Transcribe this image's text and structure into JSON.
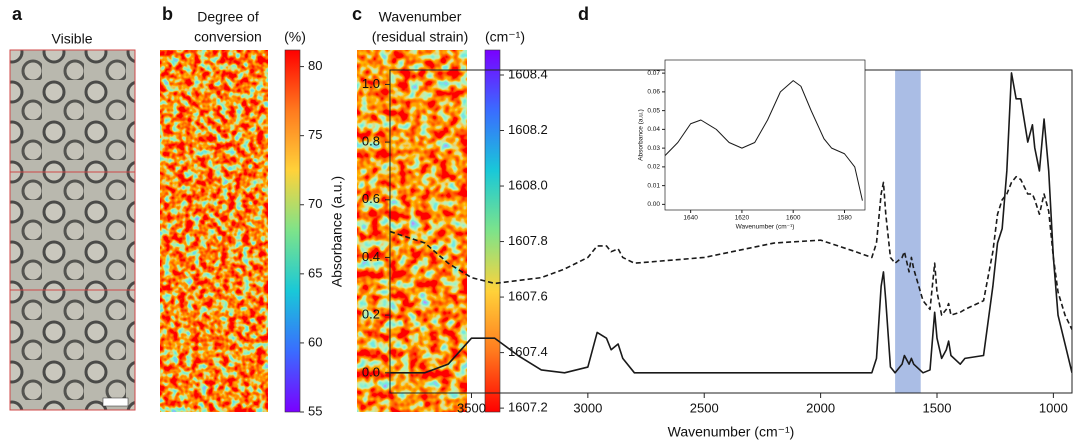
{
  "chart_data": [
    {
      "type": "image",
      "label": "a",
      "title": "Visible"
    },
    {
      "type": "heatmap",
      "label": "b",
      "title": [
        "Degree of",
        "conversion"
      ],
      "unit": "(%)",
      "colors": [
        "#7a00ff",
        "#3a6cff",
        "#19c8d8",
        "#7de38a",
        "#ffd23a",
        "#ff7a1e",
        "#ff0000"
      ],
      "clim": [
        55,
        81.2
      ],
      "ticks": [
        55,
        60,
        65,
        70,
        75,
        80
      ]
    },
    {
      "type": "heatmap",
      "label": "c",
      "title": [
        "Wavenumber",
        "(residual strain)"
      ],
      "unit": "(cm⁻¹)",
      "colors": [
        "#ff0000",
        "#ff7a1e",
        "#ffd23a",
        "#7de38a",
        "#19c8d8",
        "#3a6cff",
        "#7a00ff"
      ],
      "clim": [
        1607.186,
        1608.49
      ],
      "ticks": [
        1607.2,
        1607.4,
        1607.6,
        1607.8,
        {
          "value": 1608.0,
          "label": "1608.0"
        },
        1608.2,
        1608.4
      ]
    },
    {
      "type": "line",
      "label": "d",
      "xlabel": "Wavenumber (cm⁻¹)",
      "ylabel": "Absorbance (a.u.)",
      "xlim": [
        3850,
        920
      ],
      "ylim": [
        -0.07,
        1.05
      ],
      "xticks": [
        3500,
        3000,
        2500,
        2000,
        1500,
        1000
      ],
      "yticks": [
        {
          "value": 0,
          "label": "0.0"
        },
        {
          "value": 0.2,
          "label": "0.2"
        },
        {
          "value": 0.4,
          "label": "0.4"
        },
        {
          "value": 0.6,
          "label": "0.6"
        },
        {
          "value": 0.8,
          "label": "0.8"
        },
        {
          "value": 1.0,
          "label": "1.0"
        }
      ],
      "highlight": {
        "from": 1680,
        "to": 1570,
        "color": "#9bb1e0"
      },
      "x": [
        3850,
        3700,
        3600,
        3500,
        3400,
        3300,
        3200,
        3100,
        3000,
        2960,
        2920,
        2900,
        2870,
        2850,
        2800,
        2500,
        2200,
        2000,
        1850,
        1780,
        1760,
        1740,
        1730,
        1720,
        1700,
        1680,
        1650,
        1640,
        1620,
        1610,
        1600,
        1560,
        1530,
        1510,
        1500,
        1480,
        1460,
        1450,
        1440,
        1400,
        1380,
        1300,
        1260,
        1240,
        1220,
        1200,
        1180,
        1160,
        1140,
        1110,
        1090,
        1080,
        1060,
        1040,
        1020,
        1000,
        980,
        950,
        920
      ],
      "series": [
        {
          "color": "#1a1a1a",
          "dashed": false,
          "values": [
            0.0,
            0.0,
            0.03,
            0.12,
            0.12,
            0.06,
            0.01,
            0.0,
            0.02,
            0.14,
            0.12,
            0.08,
            0.1,
            0.05,
            0.0,
            0.0,
            0.0,
            0.0,
            0.0,
            0.0,
            0.05,
            0.3,
            0.35,
            0.25,
            0.02,
            0.0,
            0.03,
            0.06,
            0.03,
            0.05,
            0.03,
            0.0,
            0.01,
            0.21,
            0.12,
            0.05,
            0.08,
            0.11,
            0.06,
            0.03,
            0.05,
            0.06,
            0.3,
            0.45,
            0.5,
            0.7,
            1.04,
            0.95,
            0.95,
            0.8,
            0.86,
            0.78,
            0.7,
            0.88,
            0.7,
            0.4,
            0.2,
            0.1,
            0.0
          ]
        },
        {
          "color": "#1a1a1a",
          "dashed": true,
          "values": [
            0.49,
            0.45,
            0.38,
            0.33,
            0.31,
            0.32,
            0.33,
            0.36,
            0.4,
            0.44,
            0.44,
            0.42,
            0.43,
            0.4,
            0.38,
            0.4,
            0.45,
            0.46,
            0.42,
            0.4,
            0.45,
            0.62,
            0.66,
            0.55,
            0.4,
            0.38,
            0.4,
            0.42,
            0.35,
            0.4,
            0.36,
            0.25,
            0.22,
            0.38,
            0.28,
            0.2,
            0.22,
            0.24,
            0.2,
            0.21,
            0.22,
            0.25,
            0.42,
            0.55,
            0.6,
            0.62,
            0.66,
            0.68,
            0.67,
            0.62,
            0.62,
            0.6,
            0.55,
            0.62,
            0.56,
            0.4,
            0.28,
            0.2,
            0.15
          ]
        }
      ]
    },
    {
      "type": "line",
      "inset": true,
      "xlabel": "Wavenumber (cm⁻¹)",
      "ylabel": "Absorbance (a.u.)",
      "xlim": [
        1650,
        1572
      ],
      "ylim": [
        -0.003,
        0.077
      ],
      "xticks": [
        1640,
        1620,
        1600,
        1580
      ],
      "yticks": [
        {
          "value": 0,
          "label": "0.00"
        },
        {
          "value": 0.01,
          "label": "0.01"
        },
        {
          "value": 0.02,
          "label": "0.02"
        },
        {
          "value": 0.03,
          "label": "0.03"
        },
        {
          "value": 0.04,
          "label": "0.04"
        },
        {
          "value": 0.05,
          "label": "0.05"
        },
        {
          "value": 0.06,
          "label": "0.06"
        },
        {
          "value": 0.07,
          "label": "0.07"
        }
      ],
      "x": [
        1650,
        1645,
        1640,
        1636,
        1630,
        1625,
        1620,
        1615,
        1610,
        1605,
        1600,
        1597,
        1593,
        1588,
        1585,
        1580,
        1576,
        1573
      ],
      "series": [
        {
          "color": "#1a1a1a",
          "dashed": false,
          "values": [
            0.026,
            0.033,
            0.043,
            0.045,
            0.04,
            0.033,
            0.03,
            0.033,
            0.045,
            0.06,
            0.066,
            0.063,
            0.05,
            0.035,
            0.03,
            0.027,
            0.02,
            0.002
          ]
        }
      ]
    }
  ]
}
